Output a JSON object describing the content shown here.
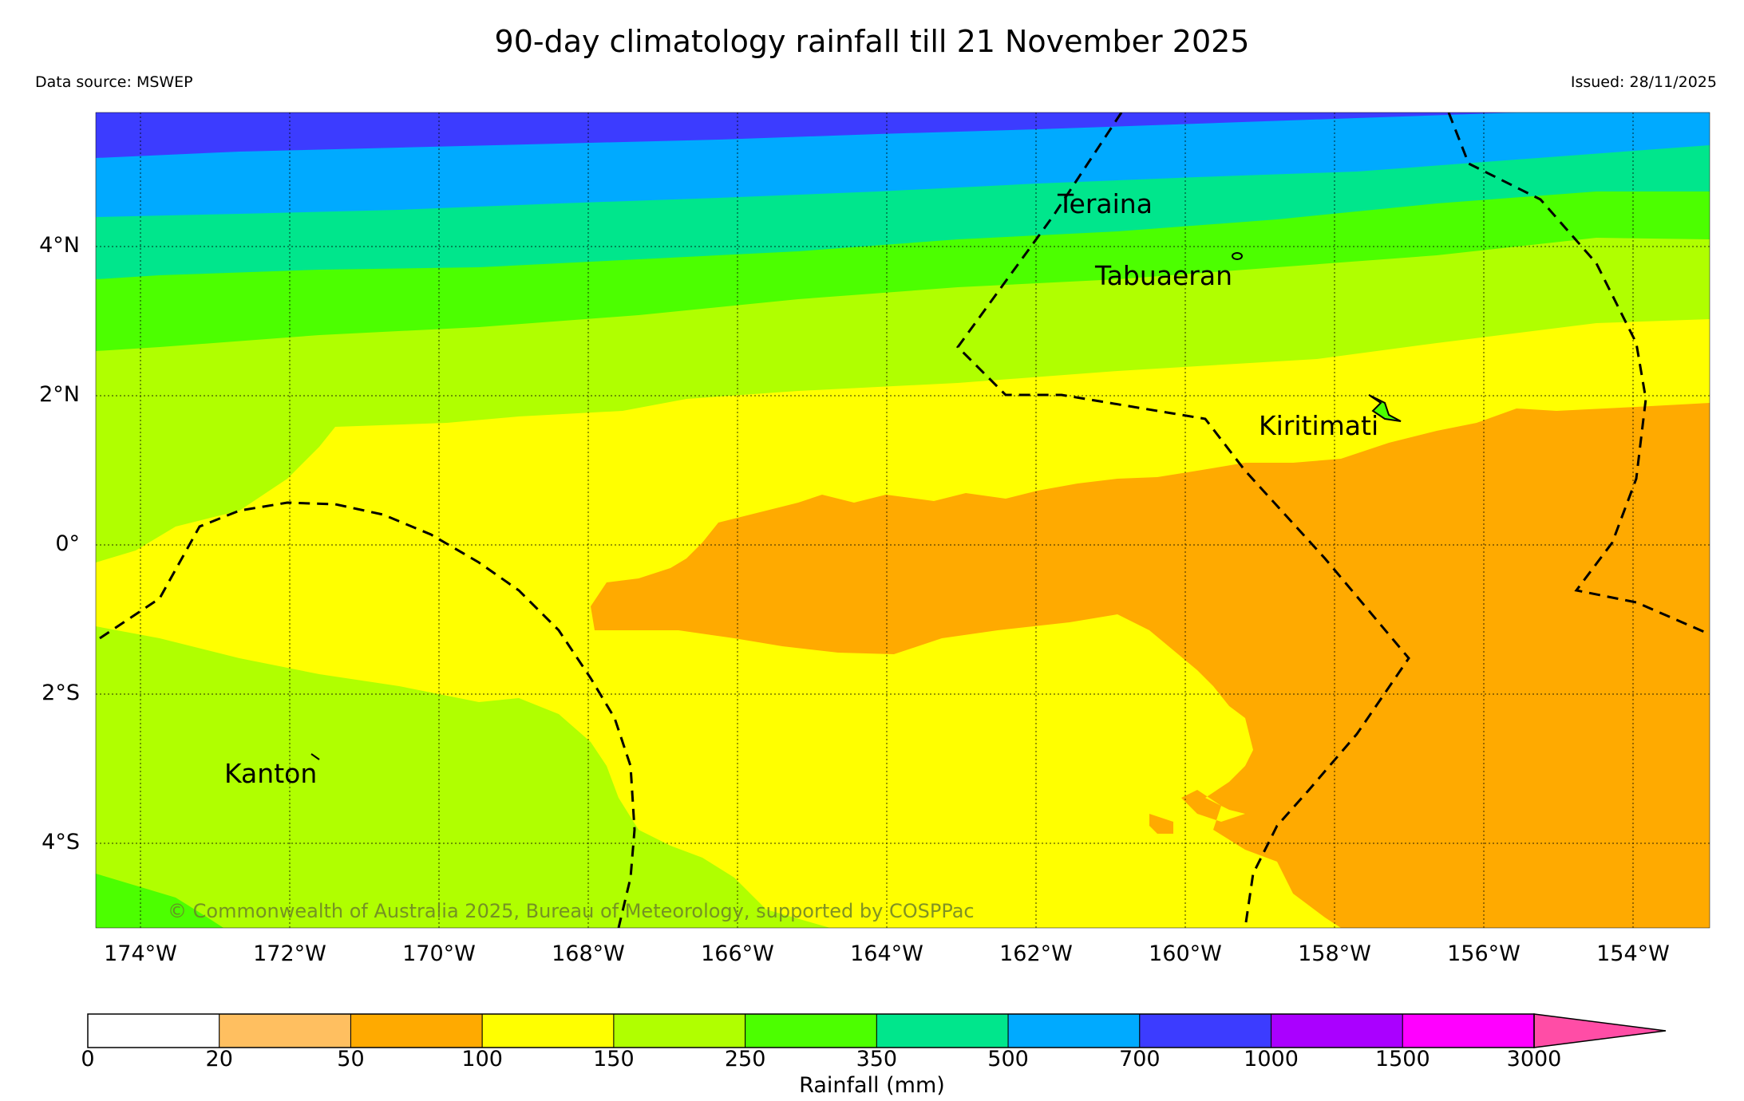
{
  "title": "90-day climatology rainfall till 21 November 2025",
  "data_source": "Data source: MSWEP",
  "issued": "Issued: 28/11/2025",
  "copyright": "© Commonwealth of Australia 2025, Bureau of Meteorology, supported by COSPPac",
  "map": {
    "lat_labels": [
      "4°N",
      "2°N",
      "0°",
      "2°S",
      "4°S"
    ],
    "lon_labels": [
      "174°W",
      "172°W",
      "170°W",
      "168°W",
      "166°W",
      "164°W",
      "162°W",
      "160°W",
      "158°W",
      "156°W",
      "154°W"
    ],
    "places": {
      "teraina": "Teraina",
      "tabuaeran": "Tabuaeran",
      "kiritimati": "Kiritimati",
      "kanton": "Kanton"
    }
  },
  "colorbar": {
    "label": "Rainfall (mm)",
    "ticks": [
      "0",
      "20",
      "50",
      "100",
      "150",
      "250",
      "350",
      "500",
      "700",
      "1000",
      "1500",
      "3000"
    ],
    "colors": [
      "#ffffff",
      "#ffbf60",
      "#ffaa00",
      "#ffff00",
      "#b0ff00",
      "#4cff00",
      "#00e68c",
      "#00aaff",
      "#3c3cff",
      "#aa00ff",
      "#ff00ff",
      "#ff4da6"
    ]
  }
}
